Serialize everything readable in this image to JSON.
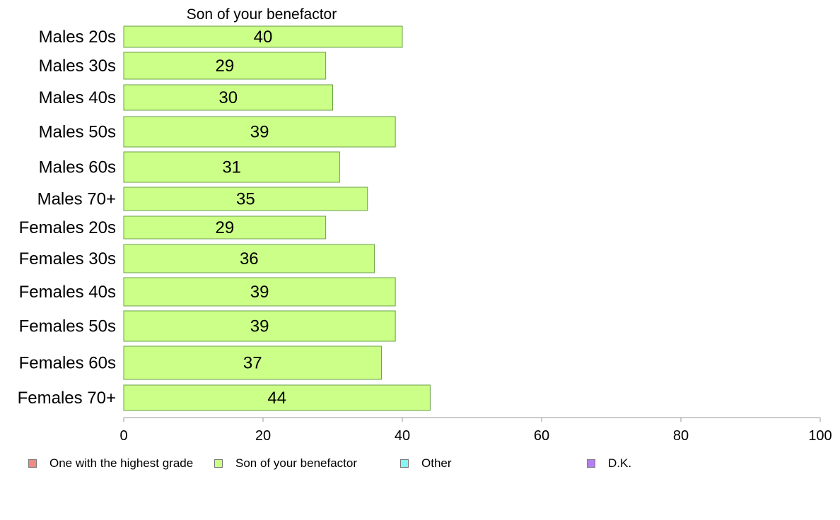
{
  "chart_data": {
    "type": "bar",
    "orientation": "horizontal",
    "title": "Son of your benefactor",
    "categories": [
      "Males 20s",
      "Males 30s",
      "Males 40s",
      "Males 50s",
      "Males 60s",
      "Males 70+",
      "Females 20s",
      "Females 30s",
      "Females 40s",
      "Females 50s",
      "Females 60s",
      "Females 70+"
    ],
    "series": [
      {
        "name": "Son of your benefactor",
        "values": [
          40,
          29,
          30,
          39,
          31,
          35,
          29,
          36,
          39,
          39,
          37,
          44
        ]
      }
    ],
    "xlim": [
      0,
      100
    ],
    "xticks": [
      0,
      20,
      40,
      60,
      80,
      100
    ],
    "grid": false,
    "legend_position": "bottom",
    "legend": [
      {
        "label": "One with the highest grade",
        "color": "#f08a84"
      },
      {
        "label": "Son of your benefactor",
        "color": "#ccff88"
      },
      {
        "label": "Other",
        "color": "#88f4f0"
      },
      {
        "label": "D.K.",
        "color": "#b57ff0"
      }
    ],
    "bar_color": "#ccff88",
    "bar_stroke": "#6aa04a"
  }
}
